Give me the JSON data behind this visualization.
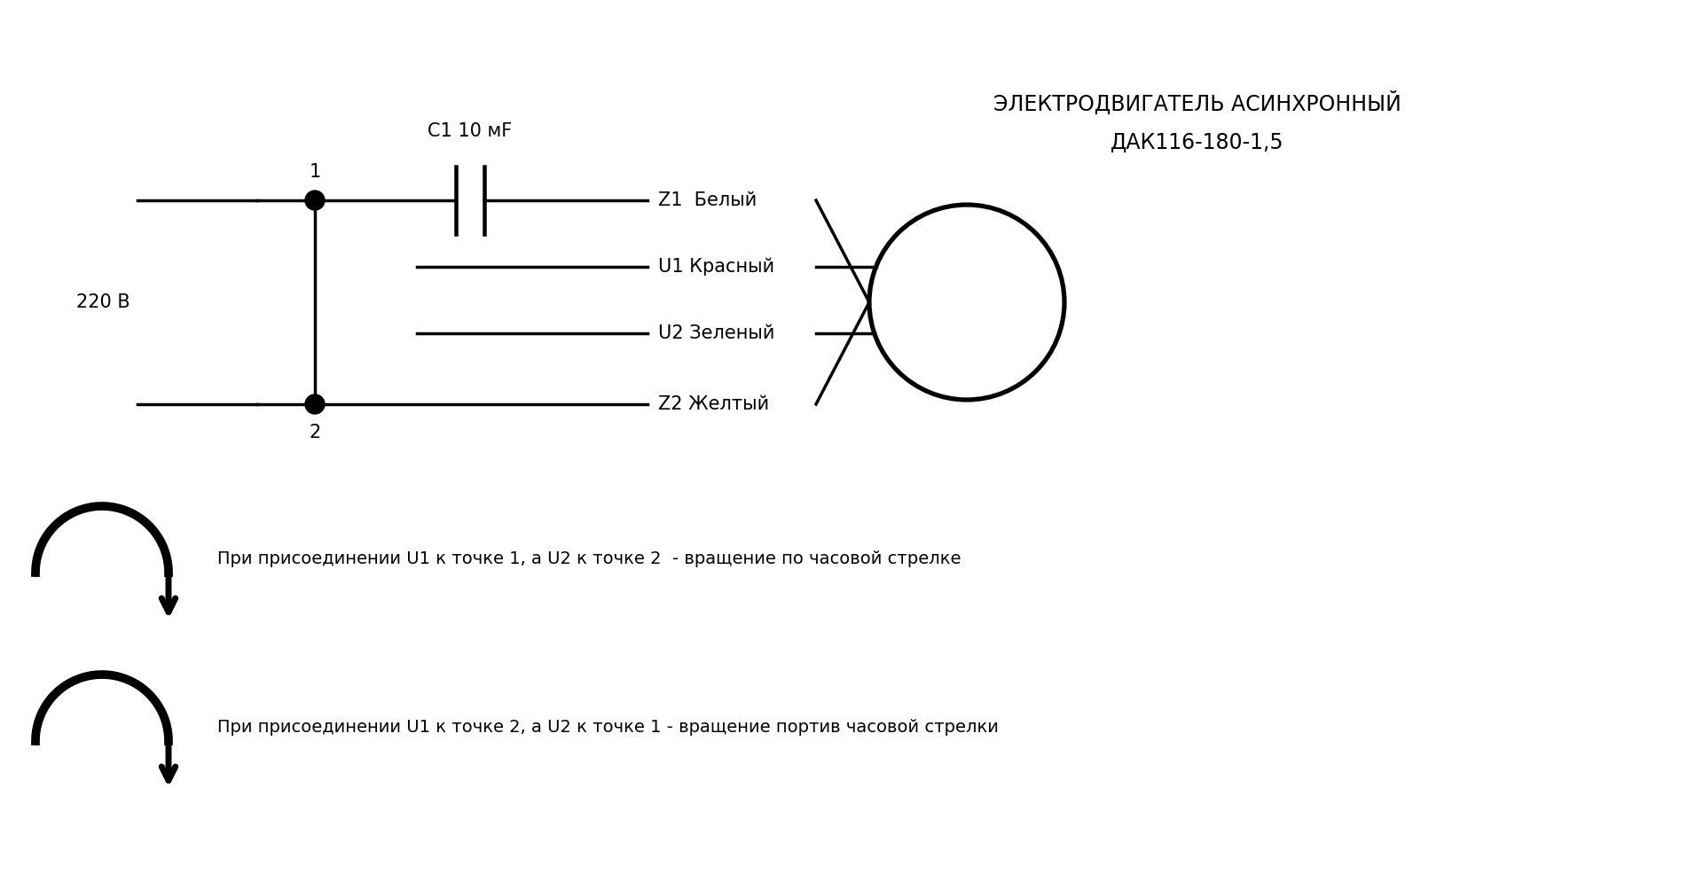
{
  "bg_color": "#ffffff",
  "title_motor_line1": "ЭЛЕКТРОДВИГАТЕЛЬ АСИНХРОННЫЙ",
  "title_motor_line2": "ДАК116-180-1,5",
  "title_cap": "C1 10 мF",
  "voltage_label": "220 В",
  "wire_labels": [
    "Z1  Белый",
    "U1 Красный",
    "U2 Зеленый",
    "Z2 Желтый"
  ],
  "point1_label": "1",
  "point2_label": "2",
  "text1": "При присоединении U1 к точке 1, а U2 к точке 2  - вращение по часовой стрелке",
  "text2": "При присоединении U1 к точке 2, а U2 к точке 1 - вращение портив часовой стрелки",
  "lw": 2.5,
  "font_size_main": 17,
  "font_size_label": 15,
  "font_size_text": 14
}
